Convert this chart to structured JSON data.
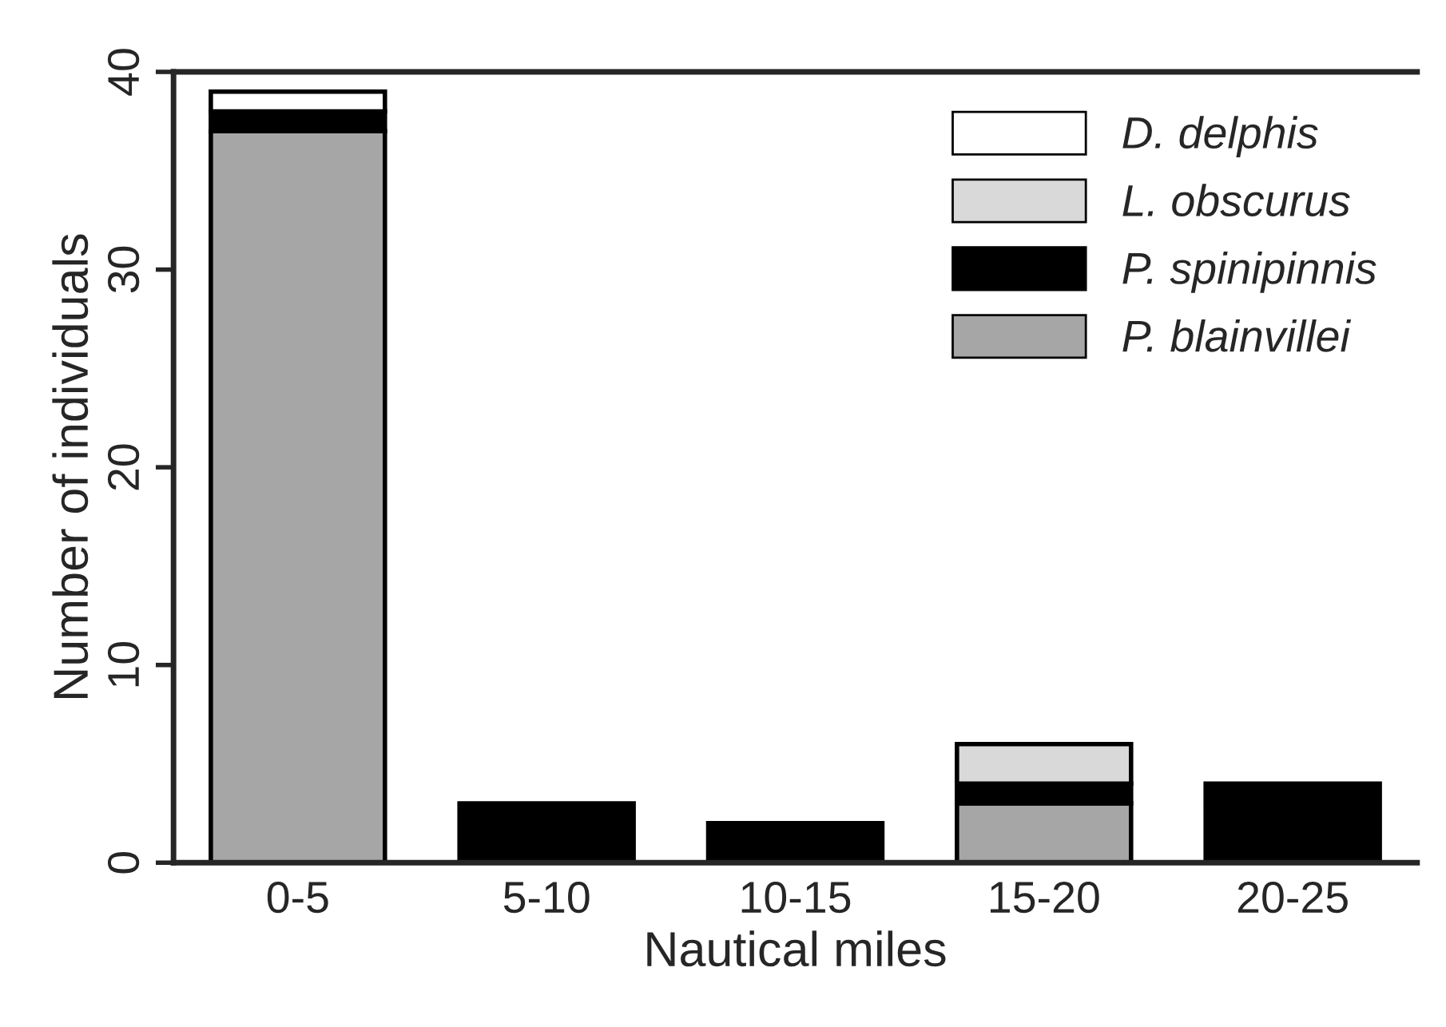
{
  "chart_data": {
    "type": "bar",
    "stacked": true,
    "xlabel": "Nautical miles",
    "ylabel": "Number of individuals",
    "categories": [
      "0-5",
      "5-10",
      "10-15",
      "15-20",
      "20-25"
    ],
    "series": [
      {
        "name": "P. blainvillei",
        "color": "#a6a6a6",
        "values": [
          37,
          0,
          0,
          3,
          0
        ]
      },
      {
        "name": "P. spinipinnis",
        "color": "#000000",
        "values": [
          1,
          3,
          2,
          1,
          4
        ]
      },
      {
        "name": "L. obscurus",
        "color": "#d9d9d9",
        "values": [
          0,
          0,
          0,
          2,
          0
        ]
      },
      {
        "name": "D. delphis",
        "color": "#ffffff",
        "values": [
          1,
          0,
          0,
          0,
          0
        ]
      }
    ],
    "ylim": [
      0,
      40
    ],
    "yticks": [
      0,
      10,
      20,
      30,
      40
    ],
    "grid": false,
    "legend": "top right"
  }
}
